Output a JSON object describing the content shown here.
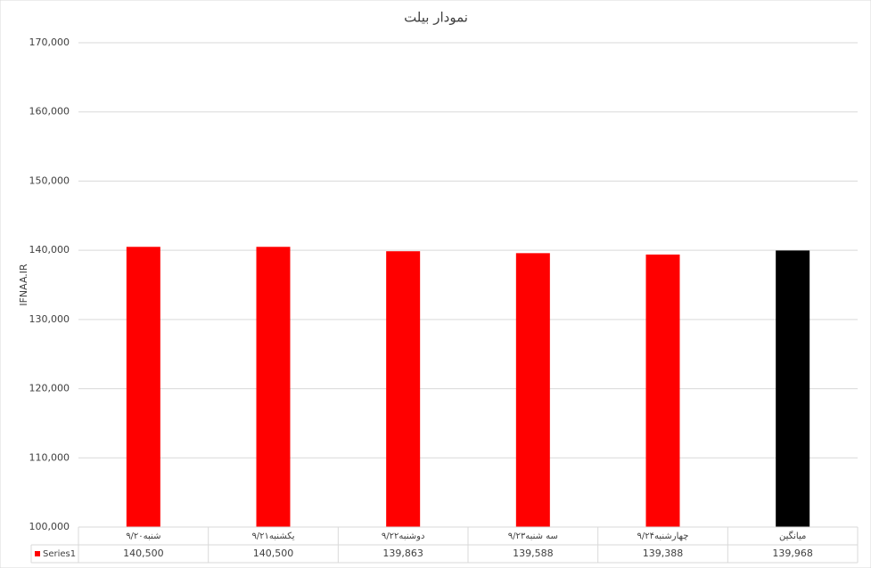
{
  "chart_data": {
    "type": "bar",
    "title": "نمودار بیلت",
    "y_label": "IFNAA.IR",
    "categories": [
      "شنبه۹/۲۰",
      "یکشنبه۹/۲۱",
      "دوشنبه۹/۲۲",
      "سه شنبه۹/۲۳",
      "چهارشنبه۹/۲۴",
      "میانگین"
    ],
    "series": [
      {
        "name": "Series1",
        "color": "#ff0000",
        "point_colors": [
          "#ff0000",
          "#ff0000",
          "#ff0000",
          "#ff0000",
          "#ff0000",
          "#000000"
        ],
        "values": [
          140500,
          140500,
          139863,
          139588,
          139388,
          139968
        ],
        "value_labels": [
          "140,500",
          "140,500",
          "139,863",
          "139,588",
          "139,388",
          "139,968"
        ]
      }
    ],
    "ylim": [
      100000,
      170000
    ],
    "yticks": [
      {
        "value": 100000,
        "label": "100,000"
      },
      {
        "value": 110000,
        "label": "110,000"
      },
      {
        "value": 120000,
        "label": "120,000"
      },
      {
        "value": 130000,
        "label": "130,000"
      },
      {
        "value": 140000,
        "label": "140,000"
      },
      {
        "value": 150000,
        "label": "150,000"
      },
      {
        "value": 160000,
        "label": "160,000"
      },
      {
        "value": 170000,
        "label": "170,000"
      }
    ],
    "grid": true,
    "data_table": true
  }
}
